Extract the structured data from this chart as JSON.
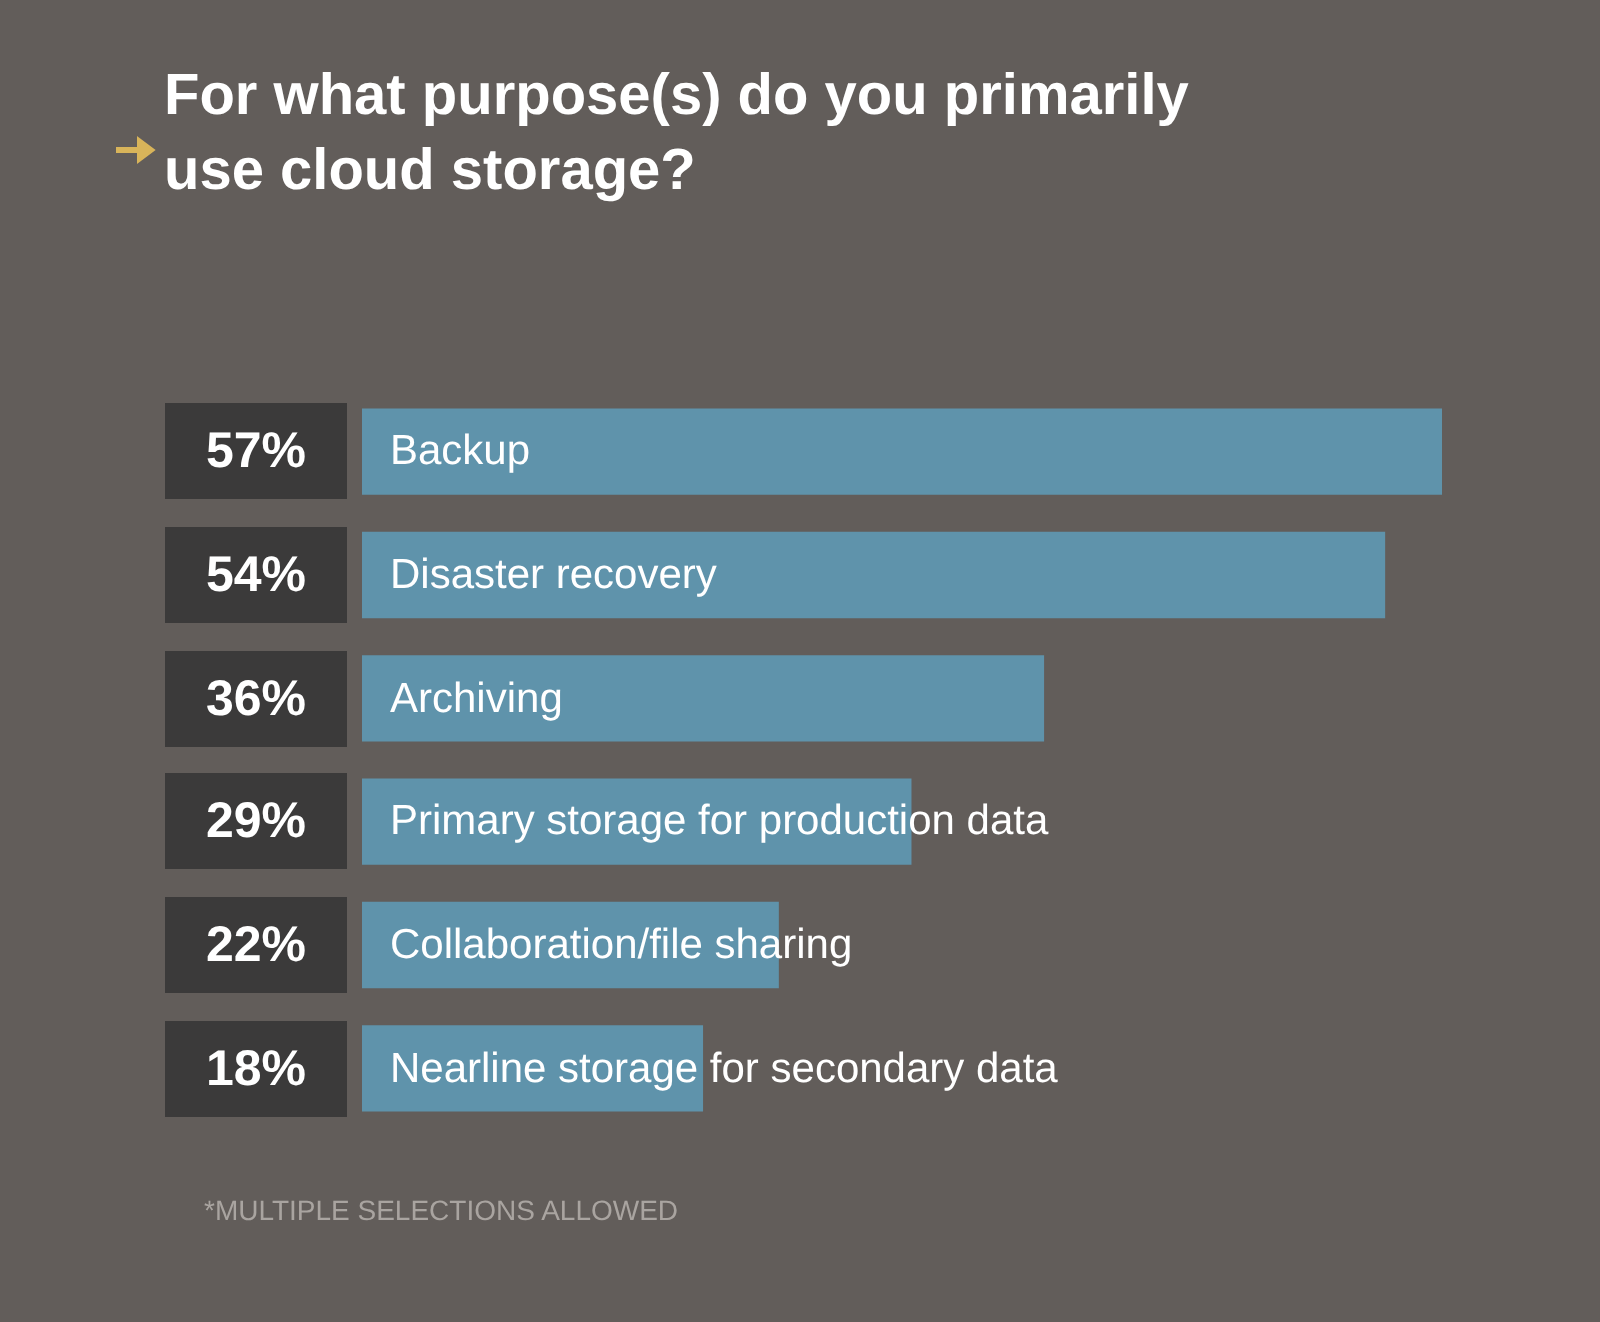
{
  "chart_data": {
    "type": "bar",
    "orientation": "horizontal",
    "title": "For what purpose(s) do you primarily use cloud storage?",
    "categories": [
      "Backup",
      "Disaster recovery",
      "Archiving",
      "Primary storage for production data",
      "Collaboration/file sharing",
      "Nearline storage for secondary data"
    ],
    "values": [
      57,
      54,
      36,
      29,
      22,
      18
    ],
    "value_labels": [
      "57%",
      "54%",
      "36%",
      "29%",
      "22%",
      "18%"
    ],
    "color": "#5f93ab",
    "annotations": [
      "*MULTIPLE SELECTIONS ALLOWED"
    ],
    "legend": false
  }
}
